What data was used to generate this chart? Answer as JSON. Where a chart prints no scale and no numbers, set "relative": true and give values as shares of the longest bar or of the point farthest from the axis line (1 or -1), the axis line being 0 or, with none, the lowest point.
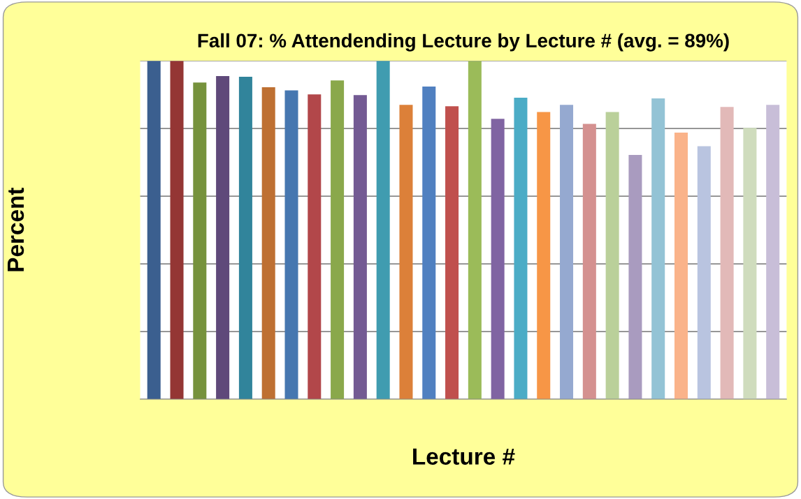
{
  "chart_data": {
    "type": "bar",
    "title": "Fall 07: % Attendending Lecture by Lecture # (avg. = 89%)",
    "xlabel": "Lecture #",
    "ylabel": "Percent",
    "relative": true,
    "grid": "y",
    "tick_labels": false,
    "categories": [
      null,
      null,
      null,
      null,
      null,
      null,
      null,
      null,
      null,
      null,
      null,
      null,
      null,
      null,
      null,
      null,
      null,
      null,
      null,
      null,
      null,
      null,
      null,
      null,
      null,
      null,
      null,
      null
    ],
    "values": [
      1.0,
      1.0,
      0.936,
      0.955,
      0.953,
      0.922,
      0.913,
      0.901,
      0.942,
      0.899,
      1.0,
      0.87,
      0.924,
      0.866,
      1.0,
      0.829,
      0.891,
      0.849,
      0.87,
      0.814,
      0.849,
      0.722,
      0.889,
      0.788,
      0.748,
      0.864,
      0.802,
      0.87
    ],
    "colors": [
      "#3b5f8f",
      "#943634",
      "#76923c",
      "#5f497a",
      "#31849b",
      "#be7032",
      "#4677b0",
      "#b2474a",
      "#8aa84b",
      "#735a93",
      "#409cb0",
      "#dc8039",
      "#5080c0",
      "#c0504d",
      "#9bbb59",
      "#8064a2",
      "#4bacc6",
      "#f79646",
      "#95a9d0",
      "#d49190",
      "#bad09a",
      "#a99bbf",
      "#93c3d5",
      "#fab38a",
      "#b9c4e0",
      "#e2b9b8",
      "#cfdcbd",
      "#c8bed8"
    ]
  }
}
